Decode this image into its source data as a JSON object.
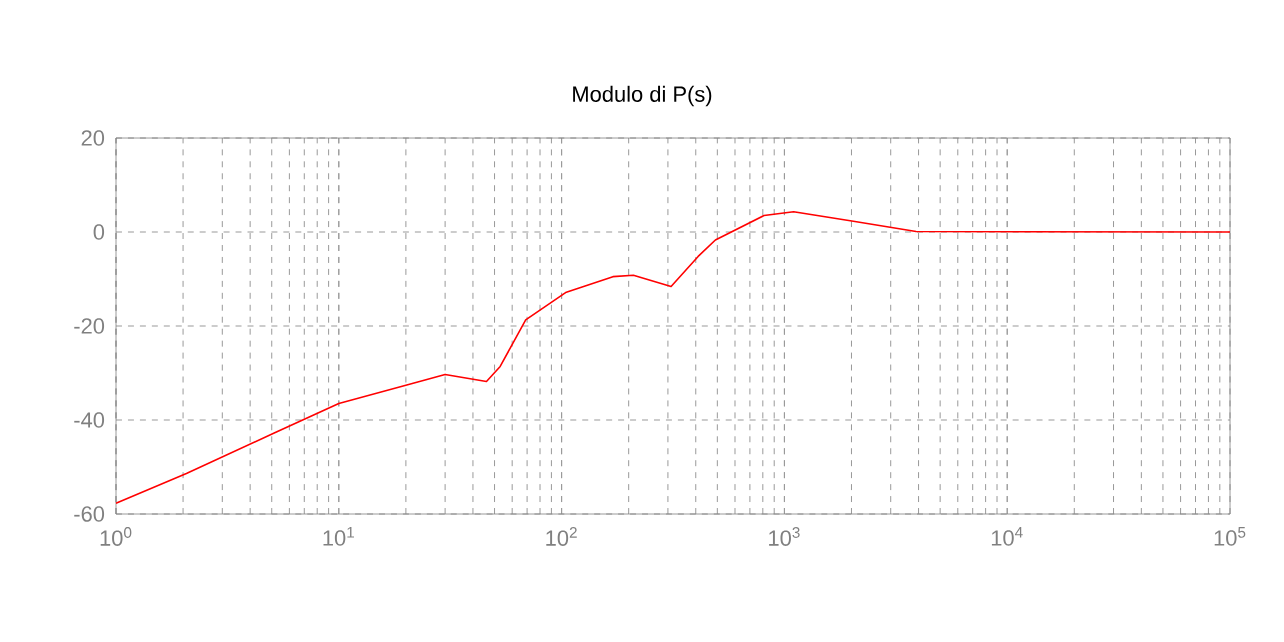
{
  "chart_data": {
    "type": "line",
    "title": "Modulo di P(s)",
    "log": "x",
    "grid": true,
    "xlim": [
      1,
      100000
    ],
    "ylim": [
      -60,
      20
    ],
    "xticks": [
      {
        "value": 1,
        "label": "10$^{0}$"
      },
      {
        "value": 10,
        "label": "10$^{1}$"
      },
      {
        "value": 100,
        "label": "10$^{2}$"
      },
      {
        "value": 1000,
        "label": "10$^{3}$"
      },
      {
        "value": 10000,
        "label": "10$^{4}$"
      },
      {
        "value": 100000,
        "label": "10$^{5}$"
      }
    ],
    "yticks": [
      -60,
      -40,
      -20,
      0,
      20
    ],
    "series": [
      {
        "color": "#ff0000",
        "x": [
          1,
          2.07,
          5.1,
          10,
          20,
          30,
          46,
          53,
          69,
          105,
          170,
          210,
          310,
          410,
          490,
          810,
          1100,
          2040,
          3900,
          100000
        ],
        "values": [
          -57.7,
          -51.4,
          -42.8,
          -36.5,
          -32.6,
          -30.3,
          -31.8,
          -28.6,
          -18.7,
          -12.8,
          -9.5,
          -9.2,
          -11.6,
          -5.2,
          -1.7,
          3.5,
          4.3,
          2.3,
          0.1,
          0
        ]
      }
    ]
  }
}
